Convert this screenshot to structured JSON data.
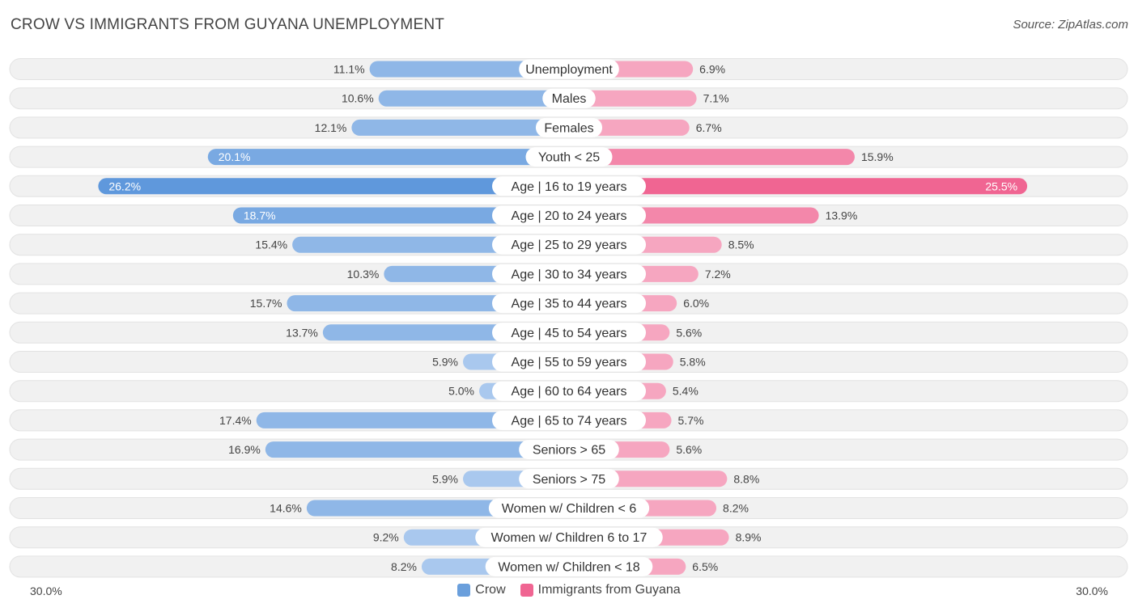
{
  "chart_data": {
    "type": "bar",
    "title": "CROW VS IMMIGRANTS FROM GUYANA UNEMPLOYMENT",
    "source": "Source: ZipAtlas.com",
    "axis_max": 30.0,
    "axis_left_label": "30.0%",
    "axis_right_label": "30.0%",
    "categories": [
      "Unemployment",
      "Males",
      "Females",
      "Youth < 25",
      "Age | 16 to 19 years",
      "Age | 20 to 24 years",
      "Age | 25 to 29 years",
      "Age | 30 to 34 years",
      "Age | 35 to 44 years",
      "Age | 45 to 54 years",
      "Age | 55 to 59 years",
      "Age | 60 to 64 years",
      "Age | 65 to 74 years",
      "Seniors > 65",
      "Seniors > 75",
      "Women w/ Children < 6",
      "Women w/ Children 6 to 17",
      "Women w/ Children < 18"
    ],
    "series": [
      {
        "name": "Crow",
        "color": "#6a9fdc",
        "values": [
          11.1,
          10.6,
          12.1,
          20.1,
          26.2,
          18.7,
          15.4,
          10.3,
          15.7,
          13.7,
          5.9,
          5.0,
          17.4,
          16.9,
          5.9,
          14.6,
          9.2,
          8.2
        ],
        "labels": [
          "11.1%",
          "10.6%",
          "12.1%",
          "20.1%",
          "26.2%",
          "18.7%",
          "15.4%",
          "10.3%",
          "15.7%",
          "13.7%",
          "5.9%",
          "5.0%",
          "17.4%",
          "16.9%",
          "5.9%",
          "14.6%",
          "9.2%",
          "8.2%"
        ]
      },
      {
        "name": "Immigrants from Guyana",
        "color": "#f06592",
        "values": [
          6.9,
          7.1,
          6.7,
          15.9,
          25.5,
          13.9,
          8.5,
          7.2,
          6.0,
          5.6,
          5.8,
          5.4,
          5.7,
          5.6,
          8.8,
          8.2,
          8.9,
          6.5
        ],
        "labels": [
          "6.9%",
          "7.1%",
          "6.7%",
          "15.9%",
          "25.5%",
          "13.9%",
          "8.5%",
          "7.2%",
          "6.0%",
          "5.6%",
          "5.8%",
          "5.4%",
          "5.7%",
          "5.6%",
          "8.8%",
          "8.2%",
          "8.9%",
          "6.5%"
        ]
      }
    ],
    "legend": [
      "Crow",
      "Immigrants from Guyana"
    ]
  }
}
